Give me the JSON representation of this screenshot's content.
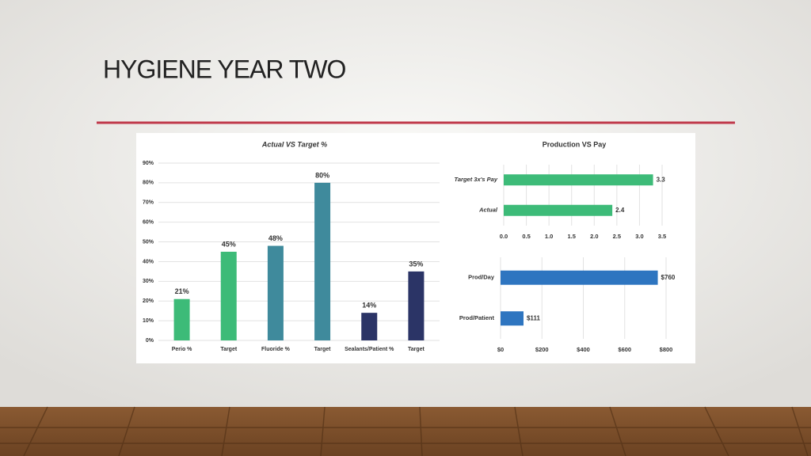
{
  "title": "HYGIENE YEAR TWO",
  "chart_data": [
    {
      "type": "bar",
      "title": "Actual VS Target %",
      "categories": [
        "Perio %",
        "Target",
        "Fluoride %",
        "Target",
        "Sealants/Patient %",
        "Target"
      ],
      "values": [
        21,
        45,
        48,
        80,
        14,
        35
      ],
      "value_labels": [
        "21%",
        "45%",
        "48%",
        "80%",
        "14%",
        "35%"
      ],
      "colors": [
        "#3dbb78",
        "#3dbb78",
        "#3f8a9c",
        "#3f8a9c",
        "#2b3466",
        "#2b3466"
      ],
      "ylim": [
        0,
        90
      ],
      "yticks": [
        {
          "value": 0,
          "label": "0%"
        },
        {
          "value": 10,
          "label": "10%"
        },
        {
          "value": 20,
          "label": "20%"
        },
        {
          "value": 30,
          "label": "30%"
        },
        {
          "value": 40,
          "label": "40%"
        },
        {
          "value": 50,
          "label": "50%"
        },
        {
          "value": 60,
          "label": "60%"
        },
        {
          "value": 70,
          "label": "70%"
        },
        {
          "value": 80,
          "label": "80%"
        },
        {
          "value": 90,
          "label": "90%"
        }
      ],
      "grid": true
    },
    {
      "type": "hbar",
      "title": "Production VS Pay",
      "categories": [
        "Target 3x's Pay",
        "Actual"
      ],
      "values": [
        3.3,
        2.4
      ],
      "color": "#3dbb78",
      "xlim": [
        0,
        3.5
      ],
      "xticks": [
        {
          "value": 0,
          "label": "0.0"
        },
        0.5,
        {
          "value": 1,
          "label": "1.0"
        },
        1.5,
        {
          "value": 2,
          "label": "2.0"
        },
        2.5,
        {
          "value": 3,
          "label": "3.0"
        },
        3.5
      ],
      "grid": true
    },
    {
      "type": "hbar",
      "categories": [
        "Prod/Day",
        "Prod/Patient"
      ],
      "values": [
        760,
        111
      ],
      "value_labels": [
        "$760",
        "$111"
      ],
      "color": "#2e75c0",
      "xlim": [
        0,
        800
      ],
      "xticks": [
        {
          "value": 0,
          "label": "$0"
        },
        {
          "value": 200,
          "label": "$200"
        },
        {
          "value": 400,
          "label": "$400"
        },
        {
          "value": 600,
          "label": "$600"
        },
        {
          "value": 800,
          "label": "$800"
        }
      ],
      "grid": true
    }
  ]
}
